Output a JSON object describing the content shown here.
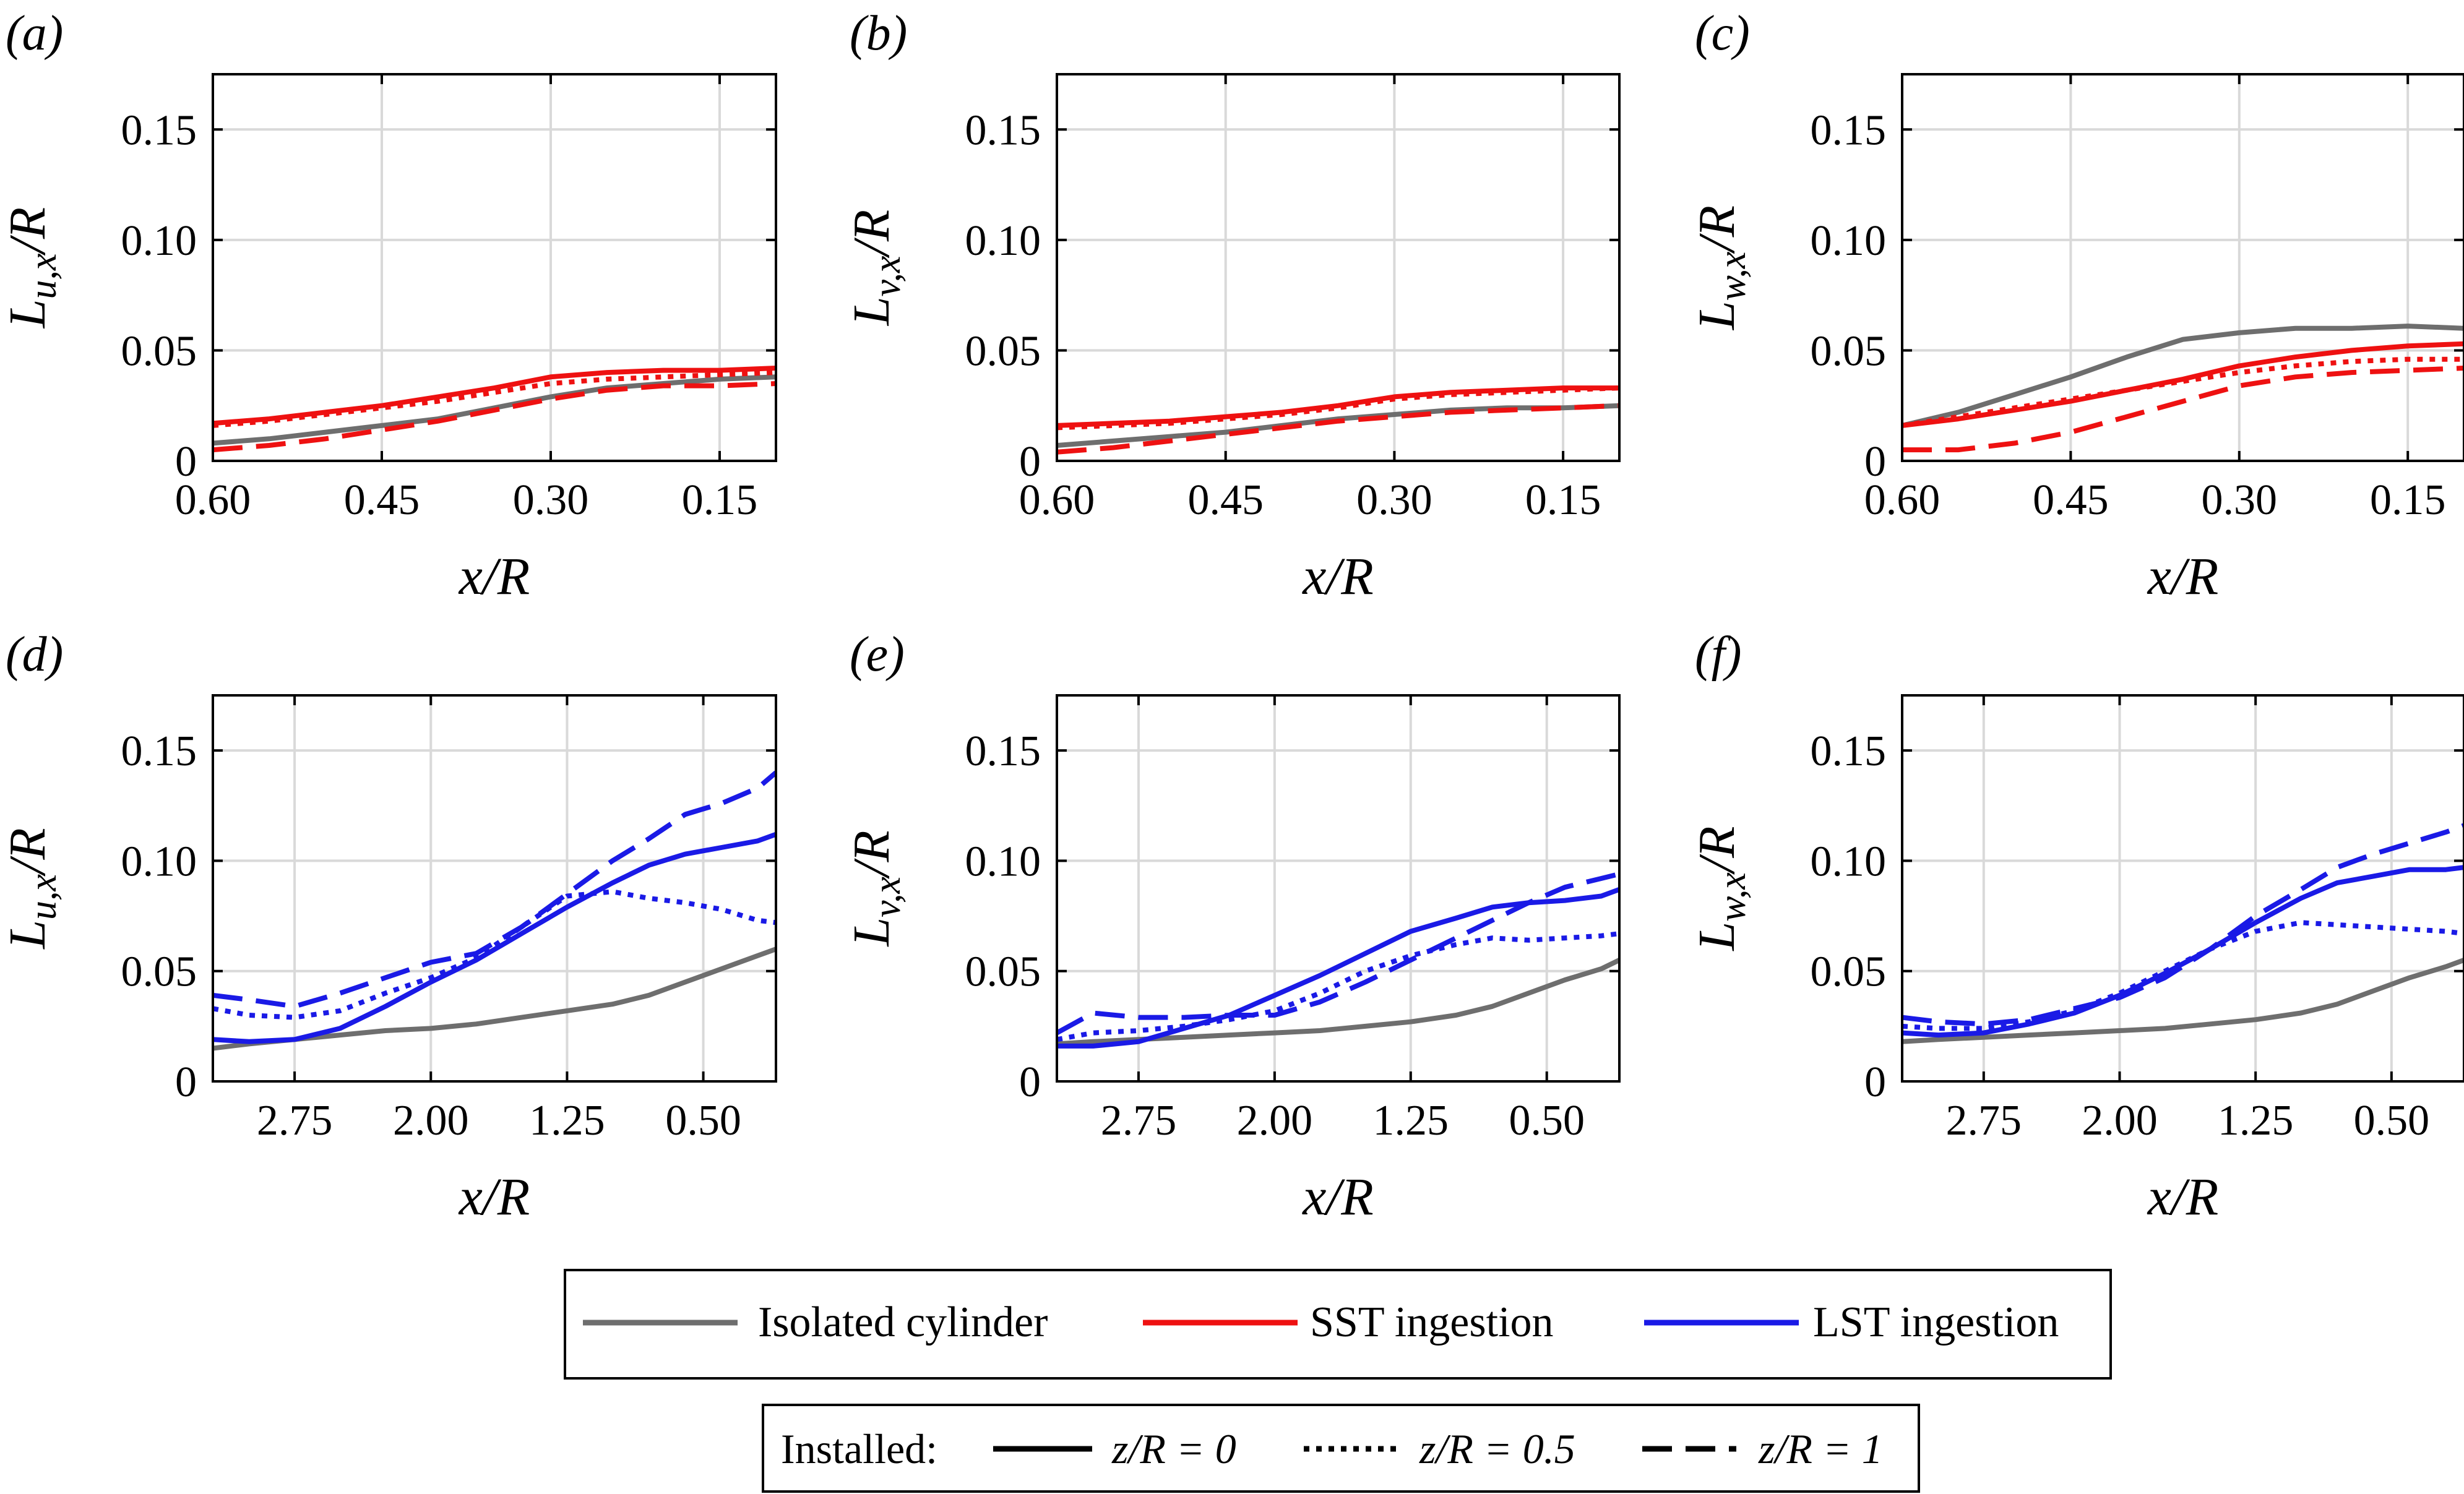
{
  "chart_data": [
    {
      "type": "line",
      "panel_label": "(a)",
      "ylabel": "L_{u,x}/R",
      "xlabel": "x/R",
      "xlim": [
        0.6,
        0.1
      ],
      "ylim": [
        0,
        0.175
      ],
      "xticks": [
        "0.60",
        "0.45",
        "0.30",
        "0.15"
      ],
      "xtick_values": [
        0.6,
        0.45,
        0.3,
        0.15
      ],
      "yticks": [
        "0",
        "0.05",
        "0.10",
        "0.15"
      ],
      "ytick_values": [
        0,
        0.05,
        0.1,
        0.15
      ],
      "grid": true,
      "series": [
        {
          "group": "isolated",
          "style": "solid",
          "x": [
            0.6,
            0.55,
            0.5,
            0.45,
            0.4,
            0.35,
            0.3,
            0.25,
            0.2,
            0.15,
            0.1
          ],
          "y": [
            0.008,
            0.01,
            0.013,
            0.016,
            0.019,
            0.024,
            0.029,
            0.033,
            0.035,
            0.037,
            0.038
          ]
        },
        {
          "group": "sst",
          "style": "solid",
          "x": [
            0.6,
            0.55,
            0.5,
            0.45,
            0.4,
            0.35,
            0.3,
            0.25,
            0.2,
            0.15,
            0.1
          ],
          "y": [
            0.017,
            0.019,
            0.022,
            0.025,
            0.029,
            0.033,
            0.038,
            0.04,
            0.041,
            0.041,
            0.042
          ]
        },
        {
          "group": "sst",
          "style": "dotted",
          "x": [
            0.6,
            0.55,
            0.5,
            0.45,
            0.4,
            0.35,
            0.3,
            0.25,
            0.2,
            0.15,
            0.1
          ],
          "y": [
            0.016,
            0.018,
            0.021,
            0.024,
            0.027,
            0.031,
            0.035,
            0.037,
            0.038,
            0.039,
            0.04
          ]
        },
        {
          "group": "sst",
          "style": "dashed",
          "x": [
            0.6,
            0.55,
            0.5,
            0.45,
            0.4,
            0.35,
            0.3,
            0.25,
            0.2,
            0.15,
            0.1
          ],
          "y": [
            0.005,
            0.007,
            0.01,
            0.014,
            0.018,
            0.023,
            0.028,
            0.032,
            0.034,
            0.034,
            0.035
          ]
        }
      ]
    },
    {
      "type": "line",
      "panel_label": "(b)",
      "ylabel": "L_{v,x}/R",
      "xlabel": "x/R",
      "xlim": [
        0.6,
        0.1
      ],
      "ylim": [
        0,
        0.175
      ],
      "xticks": [
        "0.60",
        "0.45",
        "0.30",
        "0.15"
      ],
      "xtick_values": [
        0.6,
        0.45,
        0.3,
        0.15
      ],
      "yticks": [
        "0",
        "0.05",
        "0.10",
        "0.15"
      ],
      "ytick_values": [
        0,
        0.05,
        0.1,
        0.15
      ],
      "grid": true,
      "series": [
        {
          "group": "isolated",
          "style": "solid",
          "x": [
            0.6,
            0.55,
            0.5,
            0.45,
            0.4,
            0.35,
            0.3,
            0.25,
            0.2,
            0.15,
            0.1
          ],
          "y": [
            0.007,
            0.009,
            0.011,
            0.013,
            0.016,
            0.019,
            0.021,
            0.023,
            0.024,
            0.024,
            0.025
          ]
        },
        {
          "group": "sst",
          "style": "solid",
          "x": [
            0.6,
            0.55,
            0.5,
            0.45,
            0.4,
            0.35,
            0.3,
            0.25,
            0.2,
            0.15,
            0.1
          ],
          "y": [
            0.016,
            0.017,
            0.018,
            0.02,
            0.022,
            0.025,
            0.029,
            0.031,
            0.032,
            0.033,
            0.033
          ]
        },
        {
          "group": "sst",
          "style": "dotted",
          "x": [
            0.6,
            0.55,
            0.5,
            0.45,
            0.4,
            0.35,
            0.3,
            0.25,
            0.2,
            0.15,
            0.1
          ],
          "y": [
            0.015,
            0.016,
            0.017,
            0.019,
            0.021,
            0.024,
            0.028,
            0.03,
            0.031,
            0.032,
            0.033
          ]
        },
        {
          "group": "sst",
          "style": "dashed",
          "x": [
            0.6,
            0.55,
            0.5,
            0.45,
            0.4,
            0.35,
            0.3,
            0.25,
            0.2,
            0.15,
            0.1
          ],
          "y": [
            0.004,
            0.006,
            0.009,
            0.012,
            0.015,
            0.018,
            0.02,
            0.022,
            0.023,
            0.024,
            0.025
          ]
        }
      ]
    },
    {
      "type": "line",
      "panel_label": "(c)",
      "ylabel": "L_{w,x}/R",
      "xlabel": "x/R",
      "xlim": [
        0.6,
        0.1
      ],
      "ylim": [
        0,
        0.175
      ],
      "xticks": [
        "0.60",
        "0.45",
        "0.30",
        "0.15"
      ],
      "xtick_values": [
        0.6,
        0.45,
        0.3,
        0.15
      ],
      "yticks": [
        "0",
        "0.05",
        "0.10",
        "0.15"
      ],
      "ytick_values": [
        0,
        0.05,
        0.1,
        0.15
      ],
      "grid": true,
      "series": [
        {
          "group": "isolated",
          "style": "solid",
          "x": [
            0.6,
            0.55,
            0.5,
            0.45,
            0.4,
            0.35,
            0.3,
            0.25,
            0.2,
            0.15,
            0.1
          ],
          "y": [
            0.016,
            0.022,
            0.03,
            0.038,
            0.047,
            0.055,
            0.058,
            0.06,
            0.06,
            0.061,
            0.06
          ]
        },
        {
          "group": "sst",
          "style": "solid",
          "x": [
            0.6,
            0.55,
            0.5,
            0.45,
            0.4,
            0.35,
            0.3,
            0.25,
            0.2,
            0.15,
            0.1
          ],
          "y": [
            0.016,
            0.019,
            0.023,
            0.027,
            0.032,
            0.037,
            0.043,
            0.047,
            0.05,
            0.052,
            0.053
          ]
        },
        {
          "group": "sst",
          "style": "dotted",
          "x": [
            0.6,
            0.55,
            0.5,
            0.45,
            0.4,
            0.35,
            0.3,
            0.25,
            0.2,
            0.15,
            0.1
          ],
          "y": [
            0.016,
            0.02,
            0.024,
            0.028,
            0.032,
            0.036,
            0.04,
            0.043,
            0.045,
            0.046,
            0.046
          ]
        },
        {
          "group": "sst",
          "style": "dashed",
          "x": [
            0.6,
            0.55,
            0.5,
            0.45,
            0.4,
            0.35,
            0.3,
            0.25,
            0.2,
            0.15,
            0.1
          ],
          "y": [
            0.005,
            0.005,
            0.008,
            0.013,
            0.02,
            0.027,
            0.034,
            0.038,
            0.04,
            0.041,
            0.042
          ]
        }
      ]
    },
    {
      "type": "line",
      "panel_label": "(d)",
      "ylabel": "L_{u,x}/R",
      "xlabel": "x/R",
      "xlim": [
        3.2,
        0.1
      ],
      "ylim": [
        0,
        0.175
      ],
      "xticks": [
        "2.75",
        "2.00",
        "1.25",
        "0.50"
      ],
      "xtick_values": [
        2.75,
        2.0,
        1.25,
        0.5
      ],
      "yticks": [
        "0",
        "0.05",
        "0.10",
        "0.15"
      ],
      "ytick_values": [
        0,
        0.05,
        0.1,
        0.15
      ],
      "grid": true,
      "series": [
        {
          "group": "isolated",
          "style": "solid",
          "x": [
            3.2,
            3.0,
            2.75,
            2.5,
            2.25,
            2.0,
            1.75,
            1.5,
            1.25,
            1.0,
            0.8,
            0.6,
            0.4,
            0.2,
            0.1
          ],
          "y": [
            0.015,
            0.017,
            0.019,
            0.021,
            0.023,
            0.024,
            0.026,
            0.029,
            0.032,
            0.035,
            0.039,
            0.045,
            0.051,
            0.057,
            0.06
          ]
        },
        {
          "group": "lst",
          "style": "solid",
          "x": [
            3.2,
            3.0,
            2.75,
            2.5,
            2.25,
            2.0,
            1.75,
            1.5,
            1.25,
            1.0,
            0.8,
            0.6,
            0.4,
            0.2,
            0.1
          ],
          "y": [
            0.019,
            0.018,
            0.019,
            0.024,
            0.034,
            0.045,
            0.055,
            0.067,
            0.079,
            0.09,
            0.098,
            0.103,
            0.106,
            0.109,
            0.112
          ]
        },
        {
          "group": "lst",
          "style": "dotted",
          "x": [
            3.2,
            3.0,
            2.75,
            2.5,
            2.25,
            2.0,
            1.75,
            1.5,
            1.25,
            1.0,
            0.8,
            0.6,
            0.4,
            0.2,
            0.1
          ],
          "y": [
            0.033,
            0.03,
            0.029,
            0.032,
            0.04,
            0.047,
            0.056,
            0.07,
            0.084,
            0.086,
            0.083,
            0.081,
            0.078,
            0.073,
            0.072
          ]
        },
        {
          "group": "lst",
          "style": "dashed",
          "x": [
            3.2,
            3.0,
            2.75,
            2.5,
            2.25,
            2.0,
            1.75,
            1.5,
            1.25,
            1.0,
            0.8,
            0.6,
            0.4,
            0.2,
            0.1
          ],
          "y": [
            0.039,
            0.037,
            0.034,
            0.04,
            0.047,
            0.054,
            0.058,
            0.07,
            0.085,
            0.1,
            0.11,
            0.121,
            0.126,
            0.133,
            0.14
          ]
        }
      ]
    },
    {
      "type": "line",
      "panel_label": "(e)",
      "ylabel": "L_{v,x}/R",
      "xlabel": "x/R",
      "xlim": [
        3.2,
        0.1
      ],
      "ylim": [
        0,
        0.175
      ],
      "xticks": [
        "2.75",
        "2.00",
        "1.25",
        "0.50"
      ],
      "xtick_values": [
        2.75,
        2.0,
        1.25,
        0.5
      ],
      "yticks": [
        "0",
        "0.05",
        "0.10",
        "0.15"
      ],
      "ytick_values": [
        0,
        0.05,
        0.1,
        0.15
      ],
      "grid": true,
      "series": [
        {
          "group": "isolated",
          "style": "solid",
          "x": [
            3.2,
            3.0,
            2.75,
            2.5,
            2.25,
            2.0,
            1.75,
            1.5,
            1.25,
            1.0,
            0.8,
            0.6,
            0.4,
            0.2,
            0.1
          ],
          "y": [
            0.017,
            0.018,
            0.019,
            0.02,
            0.021,
            0.022,
            0.023,
            0.025,
            0.027,
            0.03,
            0.034,
            0.04,
            0.046,
            0.051,
            0.055
          ]
        },
        {
          "group": "lst",
          "style": "solid",
          "x": [
            3.2,
            3.0,
            2.75,
            2.5,
            2.25,
            2.0,
            1.75,
            1.5,
            1.25,
            1.0,
            0.8,
            0.6,
            0.4,
            0.2,
            0.1
          ],
          "y": [
            0.016,
            0.016,
            0.018,
            0.024,
            0.03,
            0.039,
            0.048,
            0.058,
            0.068,
            0.074,
            0.079,
            0.081,
            0.082,
            0.084,
            0.087
          ]
        },
        {
          "group": "lst",
          "style": "dotted",
          "x": [
            3.2,
            3.0,
            2.75,
            2.5,
            2.25,
            2.0,
            1.75,
            1.5,
            1.25,
            1.0,
            0.8,
            0.6,
            0.4,
            0.2,
            0.1
          ],
          "y": [
            0.019,
            0.022,
            0.023,
            0.025,
            0.028,
            0.032,
            0.04,
            0.05,
            0.057,
            0.062,
            0.065,
            0.064,
            0.065,
            0.066,
            0.067
          ]
        },
        {
          "group": "lst",
          "style": "dashed",
          "x": [
            3.2,
            3.0,
            2.75,
            2.5,
            2.25,
            2.0,
            1.75,
            1.5,
            1.25,
            1.0,
            0.8,
            0.6,
            0.4,
            0.2,
            0.1
          ],
          "y": [
            0.022,
            0.031,
            0.029,
            0.029,
            0.03,
            0.03,
            0.036,
            0.045,
            0.055,
            0.065,
            0.073,
            0.081,
            0.088,
            0.092,
            0.094
          ]
        }
      ]
    },
    {
      "type": "line",
      "panel_label": "(f)",
      "ylabel": "L_{w,x}/R",
      "xlabel": "x/R",
      "xlim": [
        3.2,
        0.1
      ],
      "ylim": [
        0,
        0.175
      ],
      "xticks": [
        "2.75",
        "2.00",
        "1.25",
        "0.50"
      ],
      "xtick_values": [
        2.75,
        2.0,
        1.25,
        0.5
      ],
      "yticks": [
        "0",
        "0.05",
        "0.10",
        "0.15"
      ],
      "ytick_values": [
        0,
        0.05,
        0.1,
        0.15
      ],
      "grid": true,
      "series": [
        {
          "group": "isolated",
          "style": "solid",
          "x": [
            3.2,
            3.0,
            2.75,
            2.5,
            2.25,
            2.0,
            1.75,
            1.5,
            1.25,
            1.0,
            0.8,
            0.6,
            0.4,
            0.2,
            0.1
          ],
          "y": [
            0.018,
            0.019,
            0.02,
            0.021,
            0.022,
            0.023,
            0.024,
            0.026,
            0.028,
            0.031,
            0.035,
            0.041,
            0.047,
            0.052,
            0.055
          ]
        },
        {
          "group": "lst",
          "style": "solid",
          "x": [
            3.2,
            3.0,
            2.75,
            2.5,
            2.25,
            2.0,
            1.75,
            1.5,
            1.25,
            1.0,
            0.8,
            0.6,
            0.4,
            0.2,
            0.1
          ],
          "y": [
            0.022,
            0.021,
            0.022,
            0.026,
            0.031,
            0.039,
            0.049,
            0.06,
            0.072,
            0.083,
            0.09,
            0.093,
            0.096,
            0.096,
            0.097
          ]
        },
        {
          "group": "lst",
          "style": "dotted",
          "x": [
            3.2,
            3.0,
            2.75,
            2.5,
            2.25,
            2.0,
            1.75,
            1.5,
            1.25,
            1.0,
            0.8,
            0.6,
            0.4,
            0.2,
            0.1
          ],
          "y": [
            0.025,
            0.024,
            0.024,
            0.027,
            0.032,
            0.04,
            0.05,
            0.06,
            0.068,
            0.072,
            0.071,
            0.07,
            0.069,
            0.068,
            0.067
          ]
        },
        {
          "group": "lst",
          "style": "dashed",
          "x": [
            3.2,
            3.0,
            2.75,
            2.5,
            2.25,
            2.0,
            1.75,
            1.5,
            1.25,
            1.0,
            0.8,
            0.6,
            0.4,
            0.2,
            0.1
          ],
          "y": [
            0.029,
            0.027,
            0.026,
            0.028,
            0.033,
            0.038,
            0.047,
            0.06,
            0.075,
            0.087,
            0.097,
            0.103,
            0.108,
            0.113,
            0.116
          ]
        }
      ]
    }
  ],
  "legend": {
    "entries": [
      {
        "group": "isolated",
        "label": "Isolated cylinder"
      },
      {
        "group": "sst",
        "label": "SST ingestion"
      },
      {
        "group": "lst",
        "label": "LST ingestion"
      }
    ],
    "installed_title": "Installed:",
    "installed_entries": [
      {
        "style": "solid",
        "label": "z/R = 0"
      },
      {
        "style": "dotted",
        "label": "z/R = 0.5"
      },
      {
        "style": "dashed",
        "label": "z/R = 1"
      }
    ]
  },
  "colors": {
    "isolated": "#6e6e6e",
    "sst": "#ee1111",
    "lst": "#1a1ae6",
    "grid": "#d9d9d9",
    "axis": "#000000"
  }
}
